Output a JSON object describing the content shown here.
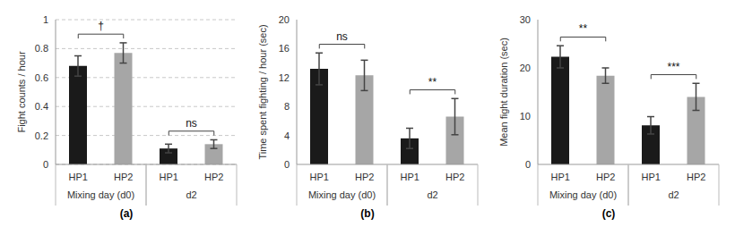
{
  "chart_data": [
    {
      "type": "bar",
      "panel": "(a)",
      "ylabel": "Fight counts / hour",
      "categories": [
        "HP1",
        "HP2",
        "HP1",
        "HP2"
      ],
      "groups": [
        "Mixing day (d0)",
        "Mixing day (d0)",
        "d2",
        "d2"
      ],
      "values": [
        0.68,
        0.77,
        0.11,
        0.14
      ],
      "errors": [
        0.07,
        0.07,
        0.03,
        0.03
      ],
      "colors": [
        "#1a1a1a",
        "#a6a6a6",
        "#1a1a1a",
        "#a6a6a6"
      ],
      "ylim": [
        0,
        1
      ],
      "yticks": [
        0,
        0.2,
        0.4,
        0.6,
        0.8,
        1
      ],
      "grid": true,
      "annotations": [
        {
          "text": "†",
          "group": "Mixing day (d0)"
        },
        {
          "text": "ns",
          "group": "d2"
        }
      ]
    },
    {
      "type": "bar",
      "panel": "(b)",
      "ylabel": "Time spent fighting / hour (sec)",
      "categories": [
        "HP1",
        "HP2",
        "HP1",
        "HP2"
      ],
      "groups": [
        "Mixing day (d0)",
        "Mixing day (d0)",
        "d2",
        "d2"
      ],
      "values": [
        13.2,
        12.3,
        3.6,
        6.6
      ],
      "errors": [
        2.2,
        2.1,
        1.4,
        2.5
      ],
      "colors": [
        "#1a1a1a",
        "#a6a6a6",
        "#1a1a1a",
        "#a6a6a6"
      ],
      "ylim": [
        0,
        20
      ],
      "yticks": [
        0,
        4,
        8,
        12,
        16,
        20
      ],
      "grid": false,
      "annotations": [
        {
          "text": "ns",
          "group": "Mixing day (d0)"
        },
        {
          "text": "**",
          "group": "d2"
        }
      ]
    },
    {
      "type": "bar",
      "panel": "(c)",
      "ylabel": "Mean fight duration (sec)",
      "categories": [
        "HP1",
        "HP2",
        "HP1",
        "HP2"
      ],
      "groups": [
        "Mixing day (d0)",
        "Mixing day (d0)",
        "d2",
        "d2"
      ],
      "values": [
        22.3,
        18.4,
        8.1,
        14
      ],
      "errors": [
        2.3,
        1.6,
        1.8,
        2.8
      ],
      "colors": [
        "#1a1a1a",
        "#a6a6a6",
        "#1a1a1a",
        "#a6a6a6"
      ],
      "ylim": [
        0,
        30
      ],
      "yticks": [
        0,
        10,
        20,
        30
      ],
      "grid": false,
      "annotations": [
        {
          "text": "**",
          "group": "Mixing day (d0)"
        },
        {
          "text": "***",
          "group": "d2"
        }
      ]
    }
  ]
}
